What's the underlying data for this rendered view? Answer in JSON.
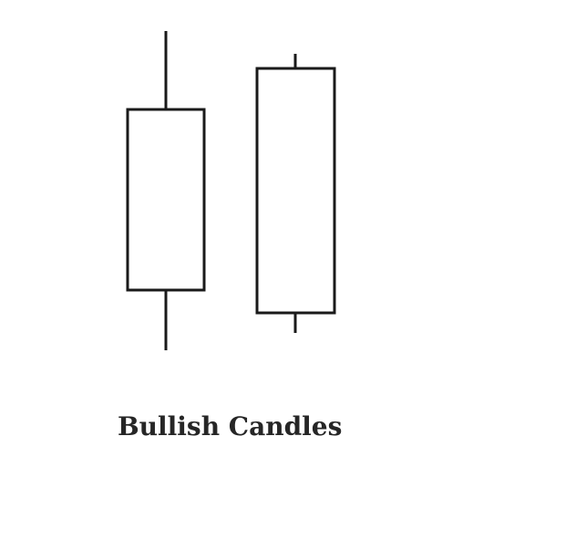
{
  "caption": "Bullish Candles",
  "colors": {
    "stroke": "#1a1a1a",
    "body_fill": "#ffffff",
    "text": "#262626",
    "background": "#ffffff"
  },
  "candles": [
    {
      "label": "",
      "kind": "bullish",
      "body": "hollow",
      "upper_wick": "long",
      "lower_wick": "long"
    },
    {
      "label": "",
      "kind": "bullish",
      "body": "hollow",
      "upper_wick": "short",
      "lower_wick": "short"
    }
  ]
}
